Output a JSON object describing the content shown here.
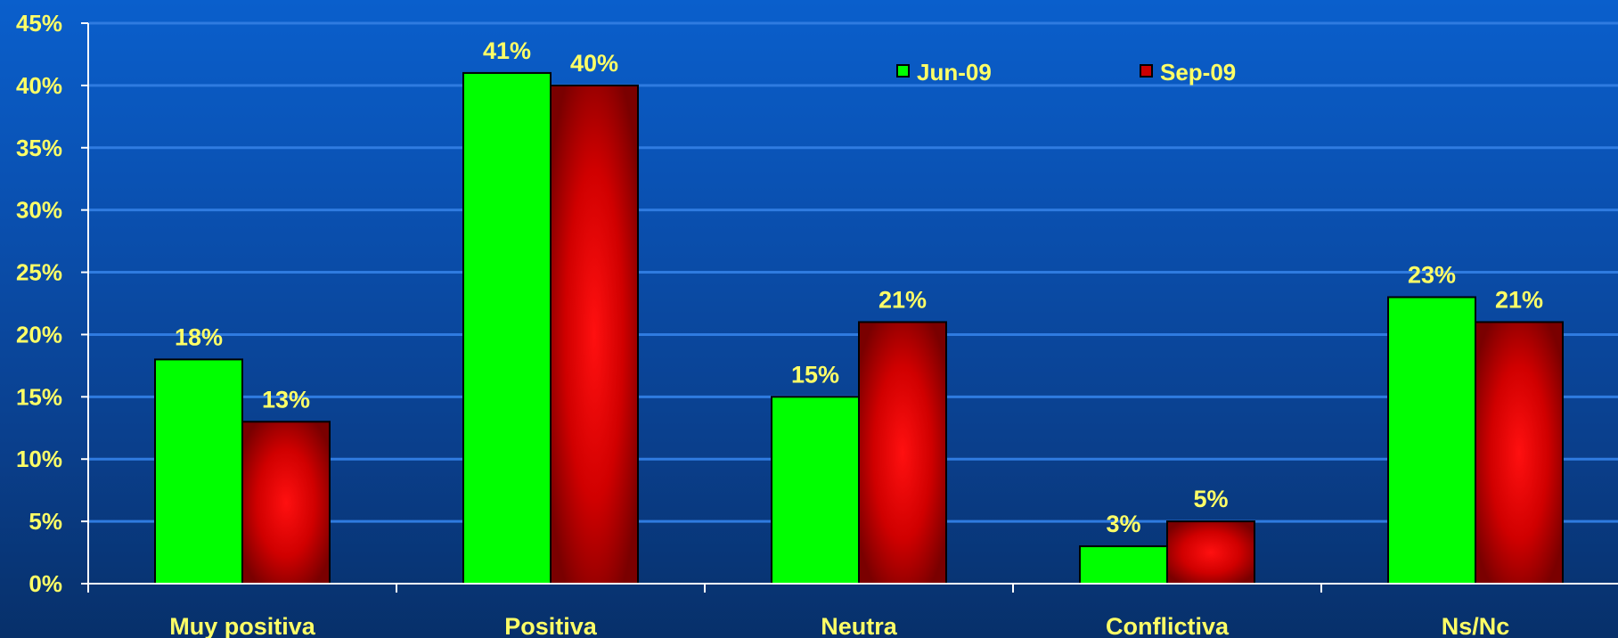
{
  "chart_data": {
    "type": "bar",
    "categories": [
      "Muy positiva",
      "Positiva",
      "Neutra",
      "Conflictiva",
      "Ns/Nc"
    ],
    "series": [
      {
        "name": "Jun-09",
        "values": [
          18,
          41,
          15,
          3,
          23
        ],
        "color": "#00ff00"
      },
      {
        "name": "Sep-09",
        "values": [
          13,
          40,
          21,
          5,
          21
        ],
        "color": "#cc0000"
      }
    ],
    "value_labels": {
      "Jun-09": [
        "18%",
        "41%",
        "15%",
        "3%",
        "23%"
      ],
      "Sep-09": [
        "13%",
        "40%",
        "21%",
        "5%",
        "21%"
      ]
    },
    "y_ticks": [
      "0%",
      "5%",
      "10%",
      "15%",
      "20%",
      "25%",
      "30%",
      "35%",
      "40%",
      "45%"
    ],
    "ylim": [
      0,
      45
    ],
    "grid": true,
    "legend": "top-center",
    "title": "",
    "xlabel": "",
    "ylabel": ""
  },
  "colors": {
    "label_text": "#ffff66",
    "axis": "#ffffff",
    "gridline": "#2f7be0",
    "bar_outline": "#000000"
  }
}
